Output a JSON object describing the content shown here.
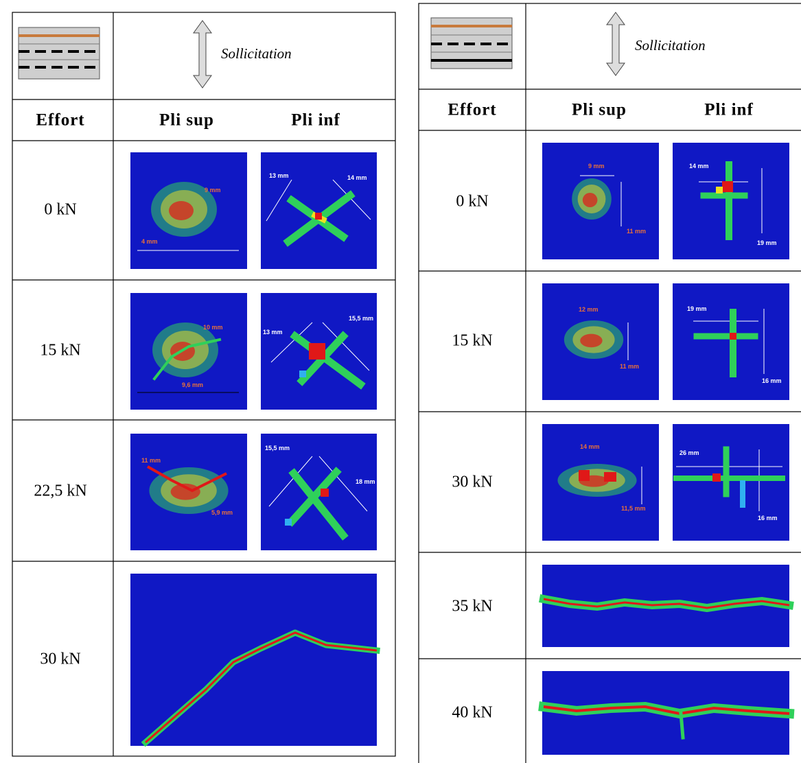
{
  "left_table": {
    "header": {
      "sollicitation": "Sollicitation",
      "effort": "Effort",
      "pli_sup": "Pli sup",
      "pli_inf": "Pli inf"
    },
    "rows": [
      {
        "effort": "0 kN",
        "pli_sup_labels": [
          "9 mm",
          "4 mm"
        ],
        "pli_inf_labels": [
          "13 mm",
          "14 mm"
        ]
      },
      {
        "effort": "15 kN",
        "pli_sup_labels": [
          "10 mm",
          "9,6 mm"
        ],
        "pli_inf_labels": [
          "13 mm",
          "15,5 mm"
        ]
      },
      {
        "effort": "22,5 kN",
        "pli_sup_labels": [
          "11 mm",
          "5,9 mm"
        ],
        "pli_inf_labels": [
          "15,5 mm",
          "18 mm"
        ]
      },
      {
        "effort": "30 kN"
      }
    ]
  },
  "right_table": {
    "header": {
      "sollicitation": "Sollicitation",
      "effort": "Effort",
      "pli_sup": "Pli sup",
      "pli_inf": "Pli inf"
    },
    "rows": [
      {
        "effort": "0 kN",
        "pli_sup_labels": [
          "9 mm",
          "11 mm"
        ],
        "pli_inf_labels": [
          "14 mm",
          "19 mm"
        ]
      },
      {
        "effort": "15 kN",
        "pli_sup_labels": [
          "12 mm",
          "11 mm"
        ],
        "pli_inf_labels": [
          "19 mm",
          "16 mm"
        ]
      },
      {
        "effort": "30 kN",
        "pli_sup_labels": [
          "14 mm",
          "11,5 mm"
        ],
        "pli_inf_labels": [
          "26 mm",
          "16 mm"
        ]
      },
      {
        "effort": "35 kN"
      },
      {
        "effort": "40 kN"
      }
    ]
  }
}
